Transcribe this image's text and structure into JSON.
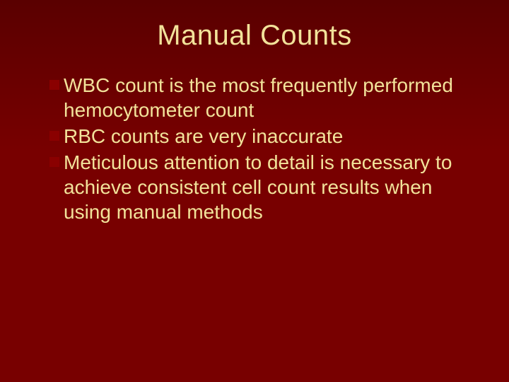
{
  "colors": {
    "background_top": "#5a0000",
    "background_bottom": "#780000",
    "title_text": "#f2e29a",
    "body_text": "#f2e29a",
    "bullet_marker": "#8a0000"
  },
  "title": "Manual Counts",
  "title_fontsize": 40,
  "body_fontsize": 28,
  "bullets": [
    "WBC count is the most frequently performed hemocytometer count",
    "RBC counts are very inaccurate",
    "Meticulous attention to detail is necessary to achieve consistent cell count results when using manual methods"
  ]
}
